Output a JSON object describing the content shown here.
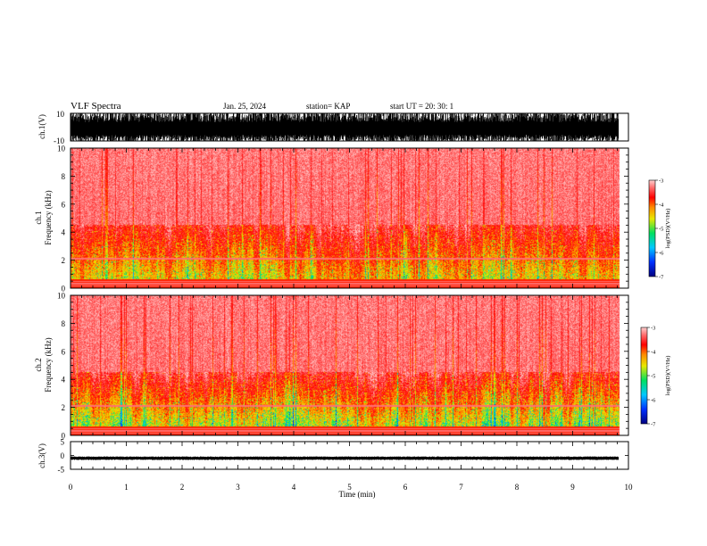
{
  "header": {
    "title": "VLF Spectra",
    "date": "Jan. 25, 2024",
    "station": "station= KAP",
    "start": "start  UT  =  20: 30: 1"
  },
  "chart_data": {
    "type": "heatmap",
    "time_axis": {
      "label": "Time  (min)",
      "range": [
        0,
        10
      ],
      "ticks": [
        "0",
        "1",
        "2",
        "3",
        "4",
        "5",
        "6",
        "7",
        "8",
        "9",
        "10"
      ],
      "data_end": 9.82
    },
    "panels": [
      {
        "id": "ch1-waveform",
        "ylabel": "ch.1(V)",
        "ylim": [
          -10,
          10
        ],
        "ticks": [
          "10",
          "-10"
        ],
        "style": "dense black waveform filling nearly full range"
      },
      {
        "id": "ch1-spectrogram",
        "ylabel": [
          "ch.1",
          "Frequency  (kHz)"
        ],
        "ylim": [
          0,
          10
        ],
        "ticks": [
          "0",
          "2",
          "4",
          "6",
          "8",
          "10"
        ],
        "colorbar": {
          "label": "log(PSD)(V²/Hz)",
          "range": [
            -7,
            -3
          ],
          "ticks": [
            "-3",
            "-4",
            "-5",
            "-6",
            "-7"
          ]
        }
      },
      {
        "id": "ch2-spectrogram",
        "ylabel": [
          "ch.2",
          "Frequency  (kHz)"
        ],
        "ylim": [
          0,
          10
        ],
        "ticks": [
          "0",
          "2",
          "4",
          "6",
          "8",
          "10"
        ],
        "colorbar": {
          "label": "log(PSD)(V²/Hz)",
          "range": [
            -7,
            -3
          ],
          "ticks": [
            "-3",
            "-4",
            "-5",
            "-6",
            "-7"
          ]
        }
      },
      {
        "id": "ch3-waveform",
        "ylabel": "ch.3(V)",
        "ylim": [
          -5,
          5
        ],
        "ticks": [
          "5",
          "0",
          "-5"
        ],
        "style": "thin black band near -1 V"
      }
    ],
    "colormap": [
      "#000080",
      "#0030ff",
      "#00c8ff",
      "#00e060",
      "#e8e800",
      "#ff8800",
      "#ff0000",
      "#ff5a5a",
      "#ffc8c8"
    ],
    "grid": false,
    "legend": "colorbars right of each spectrogram"
  }
}
